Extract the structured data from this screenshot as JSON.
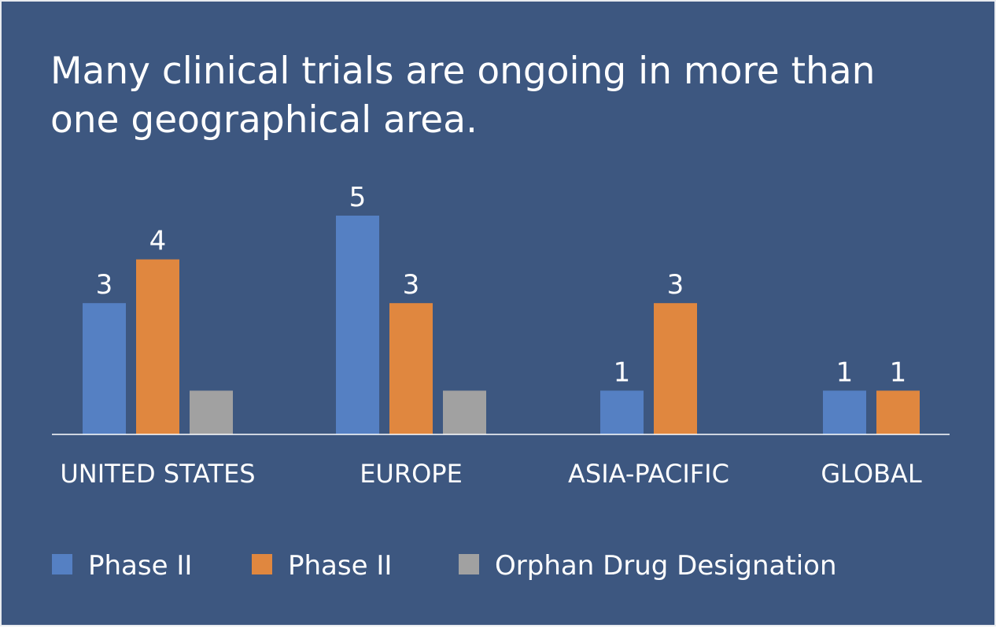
{
  "background_color": "#3d5780",
  "title": "Many clinical trials are ongoing in more than one geographical area.",
  "chart_data": {
    "type": "bar",
    "categories": [
      "UNITED STATES",
      "EUROPE",
      "ASIA-PACIFIC",
      "GLOBAL"
    ],
    "series": [
      {
        "name": "Phase II",
        "color": "#5580c3",
        "values": [
          3,
          5,
          1,
          1
        ],
        "data_labels": [
          "3",
          "5",
          "1",
          "1"
        ]
      },
      {
        "name": "Phase II",
        "color": "#e0873f",
        "values": [
          4,
          3,
          3,
          1
        ],
        "data_labels": [
          "4",
          "3",
          "3",
          "1"
        ]
      },
      {
        "name": "Orphan Drug Designation",
        "color": "#a1a1a1",
        "values": [
          1,
          1,
          null,
          null
        ],
        "data_labels": [
          "",
          "",
          "",
          ""
        ]
      }
    ],
    "ylim": [
      0,
      5.5
    ],
    "grid": false,
    "legend_position": "bottom-left",
    "axis_line_color": "#ffffff",
    "text_color": "#ffffff"
  }
}
